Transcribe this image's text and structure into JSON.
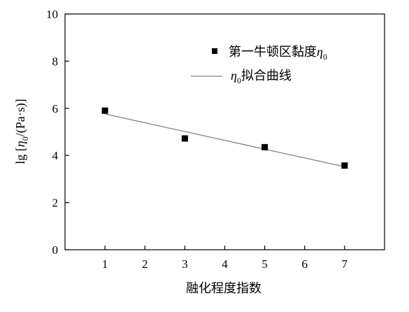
{
  "chart_data": {
    "type": "scatter",
    "xlabel": "融化程度指数",
    "ylabel": "lg [η0/(Pa·s)]",
    "ylabel_parts": {
      "prefix": "lg [",
      "eta": "η",
      "sub": "0",
      "suffix": "/(Pa·s)]"
    },
    "xlim": [
      0.0,
      8.0
    ],
    "ylim": [
      0,
      10
    ],
    "xticks": [
      "1",
      "2",
      "3",
      "4",
      "5",
      "6",
      "7"
    ],
    "yticks": [
      "0",
      "2",
      "4",
      "6",
      "8",
      "10"
    ],
    "grid": false,
    "legend_position": "top-right",
    "series": [
      {
        "name": "第一牛顿区黏度η0",
        "name_parts": {
          "text": "第一牛顿区黏度",
          "eta": "η",
          "sub": "0"
        },
        "marker": "square",
        "color": "#000000",
        "x": [
          1,
          3,
          5,
          7
        ],
        "y": [
          5.9,
          4.72,
          4.35,
          3.57
        ]
      },
      {
        "name": "η0拟合曲线",
        "name_parts": {
          "eta": "η",
          "sub": "0",
          "text": "拟合曲线"
        },
        "type": "line",
        "color": "#808080",
        "x": [
          1,
          7
        ],
        "y": [
          5.76,
          3.52
        ]
      }
    ]
  }
}
